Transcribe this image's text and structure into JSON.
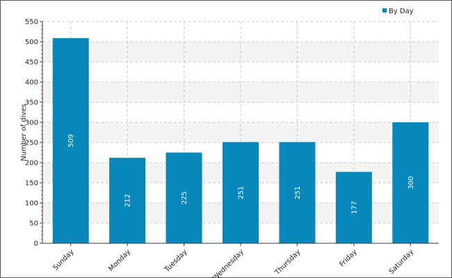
{
  "chart_data": {
    "type": "bar",
    "title": "",
    "xlabel": "",
    "ylabel": "Number of dives",
    "categories": [
      "Sunday",
      "Monday",
      "Tuesday",
      "Wednesday",
      "Thursday",
      "Friday",
      "Saturday"
    ],
    "series": [
      {
        "name": "By Day",
        "values": [
          509,
          212,
          225,
          251,
          251,
          177,
          300
        ]
      }
    ],
    "ylim": [
      0,
      550
    ],
    "yticks": [
      "0",
      "50",
      "100",
      "150",
      "200",
      "250",
      "300",
      "350",
      "400",
      "450",
      "500",
      "550"
    ],
    "grid": true,
    "legend_position": "top-right",
    "colors": {
      "bar": "#0787bb",
      "grid": "#c8c8c8",
      "band": "#f4f4f4",
      "axis": "#333333"
    }
  }
}
